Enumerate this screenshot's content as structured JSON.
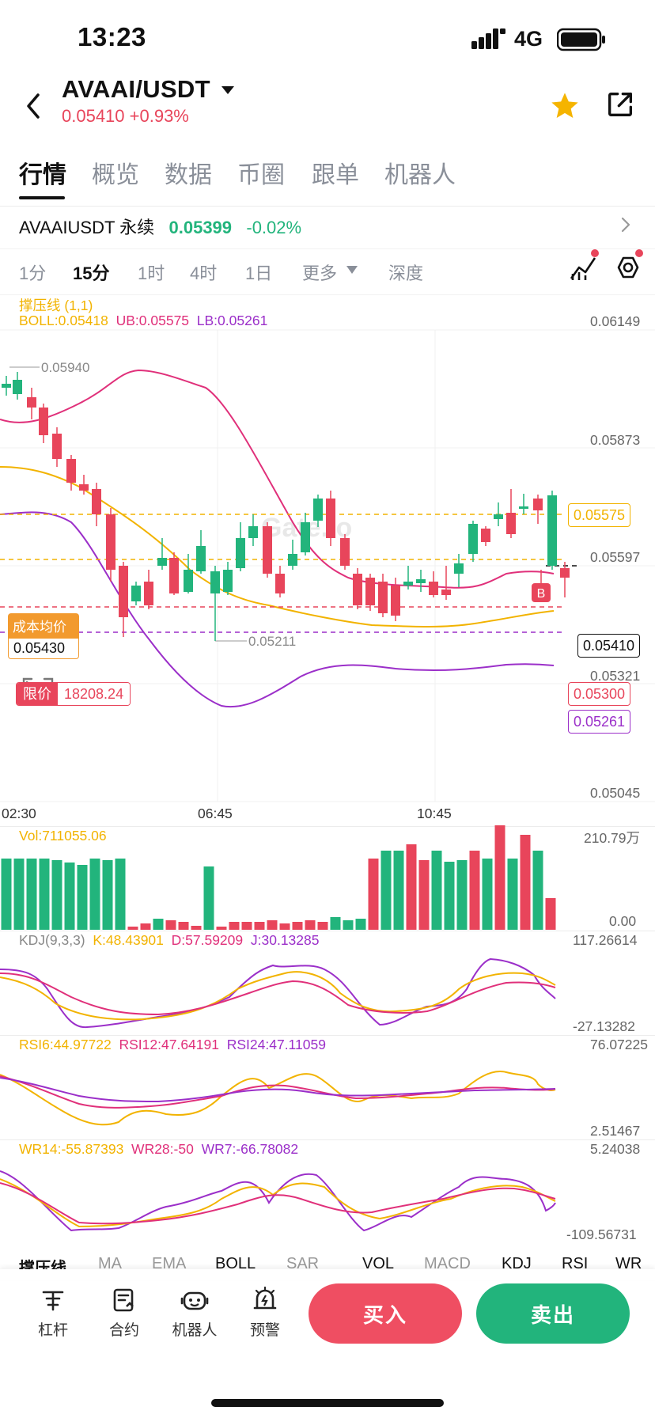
{
  "status_bar": {
    "time": "13:23",
    "network": "4G"
  },
  "header": {
    "pair": "AVAAI/USDT",
    "price_change": "0.05410 +0.93%"
  },
  "tabs": [
    {
      "label": "行情",
      "active": true
    },
    {
      "label": "概览",
      "active": false
    },
    {
      "label": "数据",
      "active": false
    },
    {
      "label": "币圈",
      "active": false
    },
    {
      "label": "跟单",
      "active": false
    },
    {
      "label": "机器人",
      "active": false
    }
  ],
  "perpetual": {
    "name": "AVAAIUSDT 永续",
    "price": "0.05399",
    "change": "-0.02%"
  },
  "intervals": [
    {
      "label": "1分",
      "active": false
    },
    {
      "label": "15分",
      "active": true
    },
    {
      "label": "1时",
      "active": false
    },
    {
      "label": "4时",
      "active": false
    },
    {
      "label": "1日",
      "active": false
    },
    {
      "label": "更多",
      "active": false
    },
    {
      "label": "深度",
      "active": false
    }
  ],
  "main_chart": {
    "overlay_name": "撑压线 (1,1)",
    "boll": "BOLL:0.05418",
    "ub": "UB:0.05575",
    "lb": "LB:0.05261",
    "y_labels": [
      "0.06149",
      "0.05873",
      "0.05597",
      "0.05321",
      "0.05045"
    ],
    "x_labels": [
      "02:30",
      "06:45",
      "10:45"
    ],
    "high_marker": "0.05940",
    "low_marker": "0.05211",
    "cost_avg_label": "成本均价",
    "cost_avg_value": "0.05430",
    "limit_label": "限价",
    "limit_value": "18208.24",
    "tag_ub": "0.05575",
    "tag_current": "0.05410",
    "tag_limit": "0.05300",
    "tag_lb": "0.05261",
    "buy_marker": "B",
    "watermark": "Gate.io"
  },
  "vol": {
    "label": "Vol:711055.06",
    "max": "210.79万",
    "min": "0.00"
  },
  "kdj": {
    "label": "KDJ(9,3,3)",
    "k": "K:48.43901",
    "d": "D:57.59209",
    "j": "J:30.13285",
    "max": "117.26614",
    "min": "-27.13282"
  },
  "rsi": {
    "r6": "RSI6:44.97722",
    "r12": "RSI12:47.64191",
    "r24": "RSI24:47.11059",
    "max": "76.07225",
    "min": "2.51467"
  },
  "wr": {
    "w14": "WR14:-55.87393",
    "w28": "WR28:-50",
    "w7": "WR7:-66.78082",
    "max": "5.24038",
    "min": "-109.56731"
  },
  "indicator_tabs": [
    "撑压线",
    "MA",
    "EMA",
    "BOLL",
    "SAR",
    "VOL",
    "MACD",
    "KDJ",
    "RSI",
    "WR"
  ],
  "bottom_bar": {
    "items": [
      {
        "label": "杠杆",
        "icon": "leverage-icon"
      },
      {
        "label": "合约",
        "icon": "contract-icon"
      },
      {
        "label": "机器人",
        "icon": "robot-icon"
      },
      {
        "label": "预警",
        "icon": "alert-icon"
      }
    ],
    "buy": "买入",
    "sell": "卖出"
  },
  "colors": {
    "up": "#22b47c",
    "down": "#e8455b",
    "boll_mid": "#f2b300",
    "boll_ub": "#e0307a",
    "boll_lb": "#9b2fc9"
  }
}
